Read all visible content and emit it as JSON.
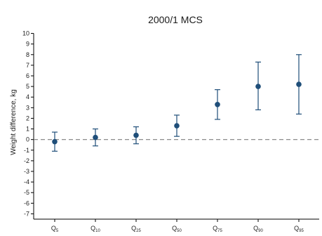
{
  "chart_data": {
    "type": "scatter",
    "title": "2000/1 MCS",
    "xlabel": "",
    "ylabel": "Weight difference, kg",
    "ylim": [
      -7.5,
      10.5
    ],
    "yticks": [
      10,
      9,
      8,
      7,
      6,
      5,
      4,
      3,
      2,
      1,
      0,
      -1,
      -2,
      -3,
      -4,
      -5,
      -6,
      -7
    ],
    "reference_line": 0,
    "grid": false,
    "categories": [
      {
        "base": "Q",
        "sub": "5"
      },
      {
        "base": "Q",
        "sub": "10"
      },
      {
        "base": "Q",
        "sub": "25"
      },
      {
        "base": "Q",
        "sub": "50"
      },
      {
        "base": "Q",
        "sub": "75"
      },
      {
        "base": "Q",
        "sub": "90"
      },
      {
        "base": "Q",
        "sub": "95"
      }
    ],
    "estimates": [
      -0.2,
      0.2,
      0.4,
      1.3,
      3.3,
      5.0,
      5.2
    ],
    "ci_lower": [
      -1.1,
      -0.6,
      -0.4,
      0.3,
      1.9,
      2.8,
      2.4
    ],
    "ci_upper": [
      0.7,
      1.0,
      1.2,
      2.3,
      4.7,
      7.3,
      8.0
    ],
    "colors": {
      "marker": "#1f4e79",
      "refline": "#7f7f7f",
      "axis": "#000000"
    }
  }
}
